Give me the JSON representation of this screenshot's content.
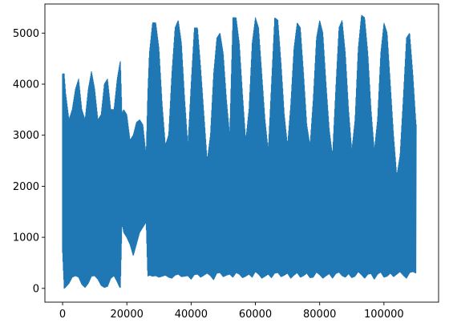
{
  "chart_data": {
    "type": "line",
    "title": "",
    "xlabel": "",
    "ylabel": "",
    "xlim": [
      -5500,
      117000
    ],
    "ylim": [
      -270,
      5570
    ],
    "grid": false,
    "legend": "none",
    "x_ticks": [
      0,
      20000,
      40000,
      60000,
      80000,
      100000
    ],
    "x_tick_labels": [
      "0",
      "20000",
      "40000",
      "60000",
      "80000",
      "100000"
    ],
    "y_ticks": [
      0,
      1000,
      2000,
      3000,
      4000,
      5000
    ],
    "y_tick_labels": [
      "0",
      "1000",
      "2000",
      "3000",
      "4000",
      "5000"
    ],
    "series": [
      {
        "name": "",
        "color": "#1f77b4",
        "x_range": [
          0,
          111000
        ],
        "envelope": {
          "x": [
            0,
            500,
            1000,
            2000,
            3000,
            4000,
            5000,
            6000,
            7000,
            8000,
            9000,
            10000,
            11000,
            12000,
            13000,
            14000,
            15000,
            16000,
            17000,
            17800,
            18000,
            18500,
            19000,
            20000,
            21000,
            22000,
            23000,
            24000,
            25000,
            26000,
            26500,
            27000,
            28000,
            29000,
            30000,
            31000,
            32000,
            33000,
            34000,
            35000,
            36000,
            37000,
            38000,
            39000,
            40000,
            41000,
            42000,
            43000,
            44000,
            45000,
            46000,
            47000,
            48000,
            49000,
            50000,
            51000,
            52000,
            53000,
            54000,
            55000,
            56000,
            57000,
            58000,
            59000,
            60000,
            61000,
            62000,
            63000,
            64000,
            65000,
            66000,
            67000,
            68000,
            69000,
            70000,
            71000,
            72000,
            73000,
            74000,
            75000,
            76000,
            77000,
            78000,
            79000,
            80000,
            81000,
            82000,
            83000,
            84000,
            85000,
            86000,
            87000,
            88000,
            89000,
            90000,
            91000,
            92000,
            93000,
            94000,
            95000,
            96000,
            97000,
            98000,
            99000,
            100000,
            101000,
            102000,
            103000,
            104000,
            105000,
            106000,
            107000,
            108000,
            109000,
            110000,
            111000
          ],
          "max": [
            4200,
            4200,
            3800,
            3300,
            3500,
            3900,
            4100,
            3500,
            3300,
            3900,
            4250,
            3900,
            3300,
            3400,
            4000,
            4100,
            3500,
            3500,
            4100,
            4400,
            4450,
            3400,
            3500,
            3400,
            2900,
            3000,
            3250,
            3300,
            3200,
            2600,
            3800,
            4600,
            5200,
            5200,
            4700,
            3600,
            2800,
            3000,
            4200,
            5100,
            5250,
            4800,
            3700,
            2800,
            4000,
            5100,
            5100,
            4300,
            3400,
            2500,
            3000,
            4200,
            4900,
            5000,
            4600,
            3700,
            3000,
            5300,
            5300,
            4800,
            3800,
            2900,
            3500,
            4800,
            5300,
            5100,
            4200,
            3300,
            2700,
            4000,
            5300,
            5250,
            4400,
            3400,
            2800,
            3600,
            4700,
            5200,
            5100,
            4200,
            3200,
            2800,
            3700,
            4900,
            5250,
            5000,
            4000,
            3100,
            2600,
            3900,
            5100,
            5250,
            4600,
            3500,
            2700,
            3300,
            4700,
            5350,
            5300,
            4600,
            3500,
            2700,
            3300,
            4600,
            5200,
            5000,
            4000,
            3000,
            2200,
            2600,
            3700,
            4900,
            5000,
            4200,
            3200,
            3700
          ],
          "min": [
            700,
            0,
            30,
            100,
            220,
            250,
            220,
            80,
            20,
            100,
            240,
            250,
            180,
            60,
            20,
            40,
            200,
            250,
            130,
            20,
            20,
            1300,
            1100,
            1000,
            860,
            640,
            870,
            1100,
            1200,
            1300,
            240,
            260,
            240,
            250,
            220,
            240,
            260,
            220,
            200,
            260,
            280,
            230,
            240,
            250,
            180,
            270,
            280,
            220,
            260,
            300,
            250,
            170,
            300,
            310,
            230,
            260,
            280,
            220,
            310,
            280,
            210,
            240,
            280,
            220,
            330,
            280,
            200,
            240,
            280,
            210,
            300,
            310,
            230,
            260,
            300,
            200,
            260,
            310,
            220,
            250,
            300,
            210,
            220,
            320,
            270,
            200,
            250,
            290,
            200,
            290,
            320,
            250,
            220,
            290,
            210,
            240,
            330,
            270,
            200,
            280,
            290,
            180,
            280,
            320,
            220,
            240,
            300,
            230,
            280,
            330,
            260,
            200,
            310,
            330,
            300
          ]
        }
      }
    ]
  }
}
